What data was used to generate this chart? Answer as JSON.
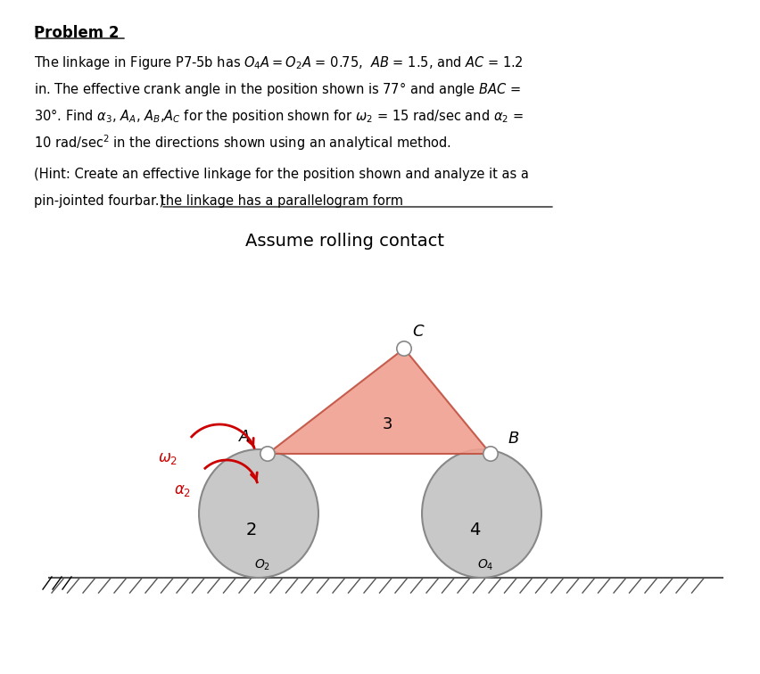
{
  "title": "Problem 2",
  "bg_color": "#ffffff",
  "body_line1": "The linkage in Figure P7-5b has $O_4A = O_2A$ = 0.75,  $AB$ = 1.5, and $AC$ = 1.2",
  "body_line2": "in. The effective crank angle in the position shown is 77° and angle $BAC$ =",
  "body_line3": "30°. Find $\\alpha_3$, $A_A$, $A_B$,$A_C$ for the position shown for $\\omega_2$ = 15 rad/sec and $\\alpha_2$ =",
  "body_line4": "10 rad/sec$^2$ in the directions shown using an analytical method.",
  "hint_line1": "(Hint: Create an effective linkage for the position shown and analyze it as a",
  "hint_line2_normal": "pin-jointed fourbar.)",
  "hint_line2_underlined": "the linkage has a parallelogram form",
  "assume_text": "Assume rolling contact",
  "omega2_color": "#cc0000",
  "gear_color": "#c8c8c8",
  "gear_edge_color": "#888888",
  "triangle_fill": "#f0a090",
  "triangle_edge": "#c05040",
  "pin_color": "#ffffff",
  "pin_edge": "#888888",
  "ground_color": "#555555",
  "hatch_color": "#555555"
}
